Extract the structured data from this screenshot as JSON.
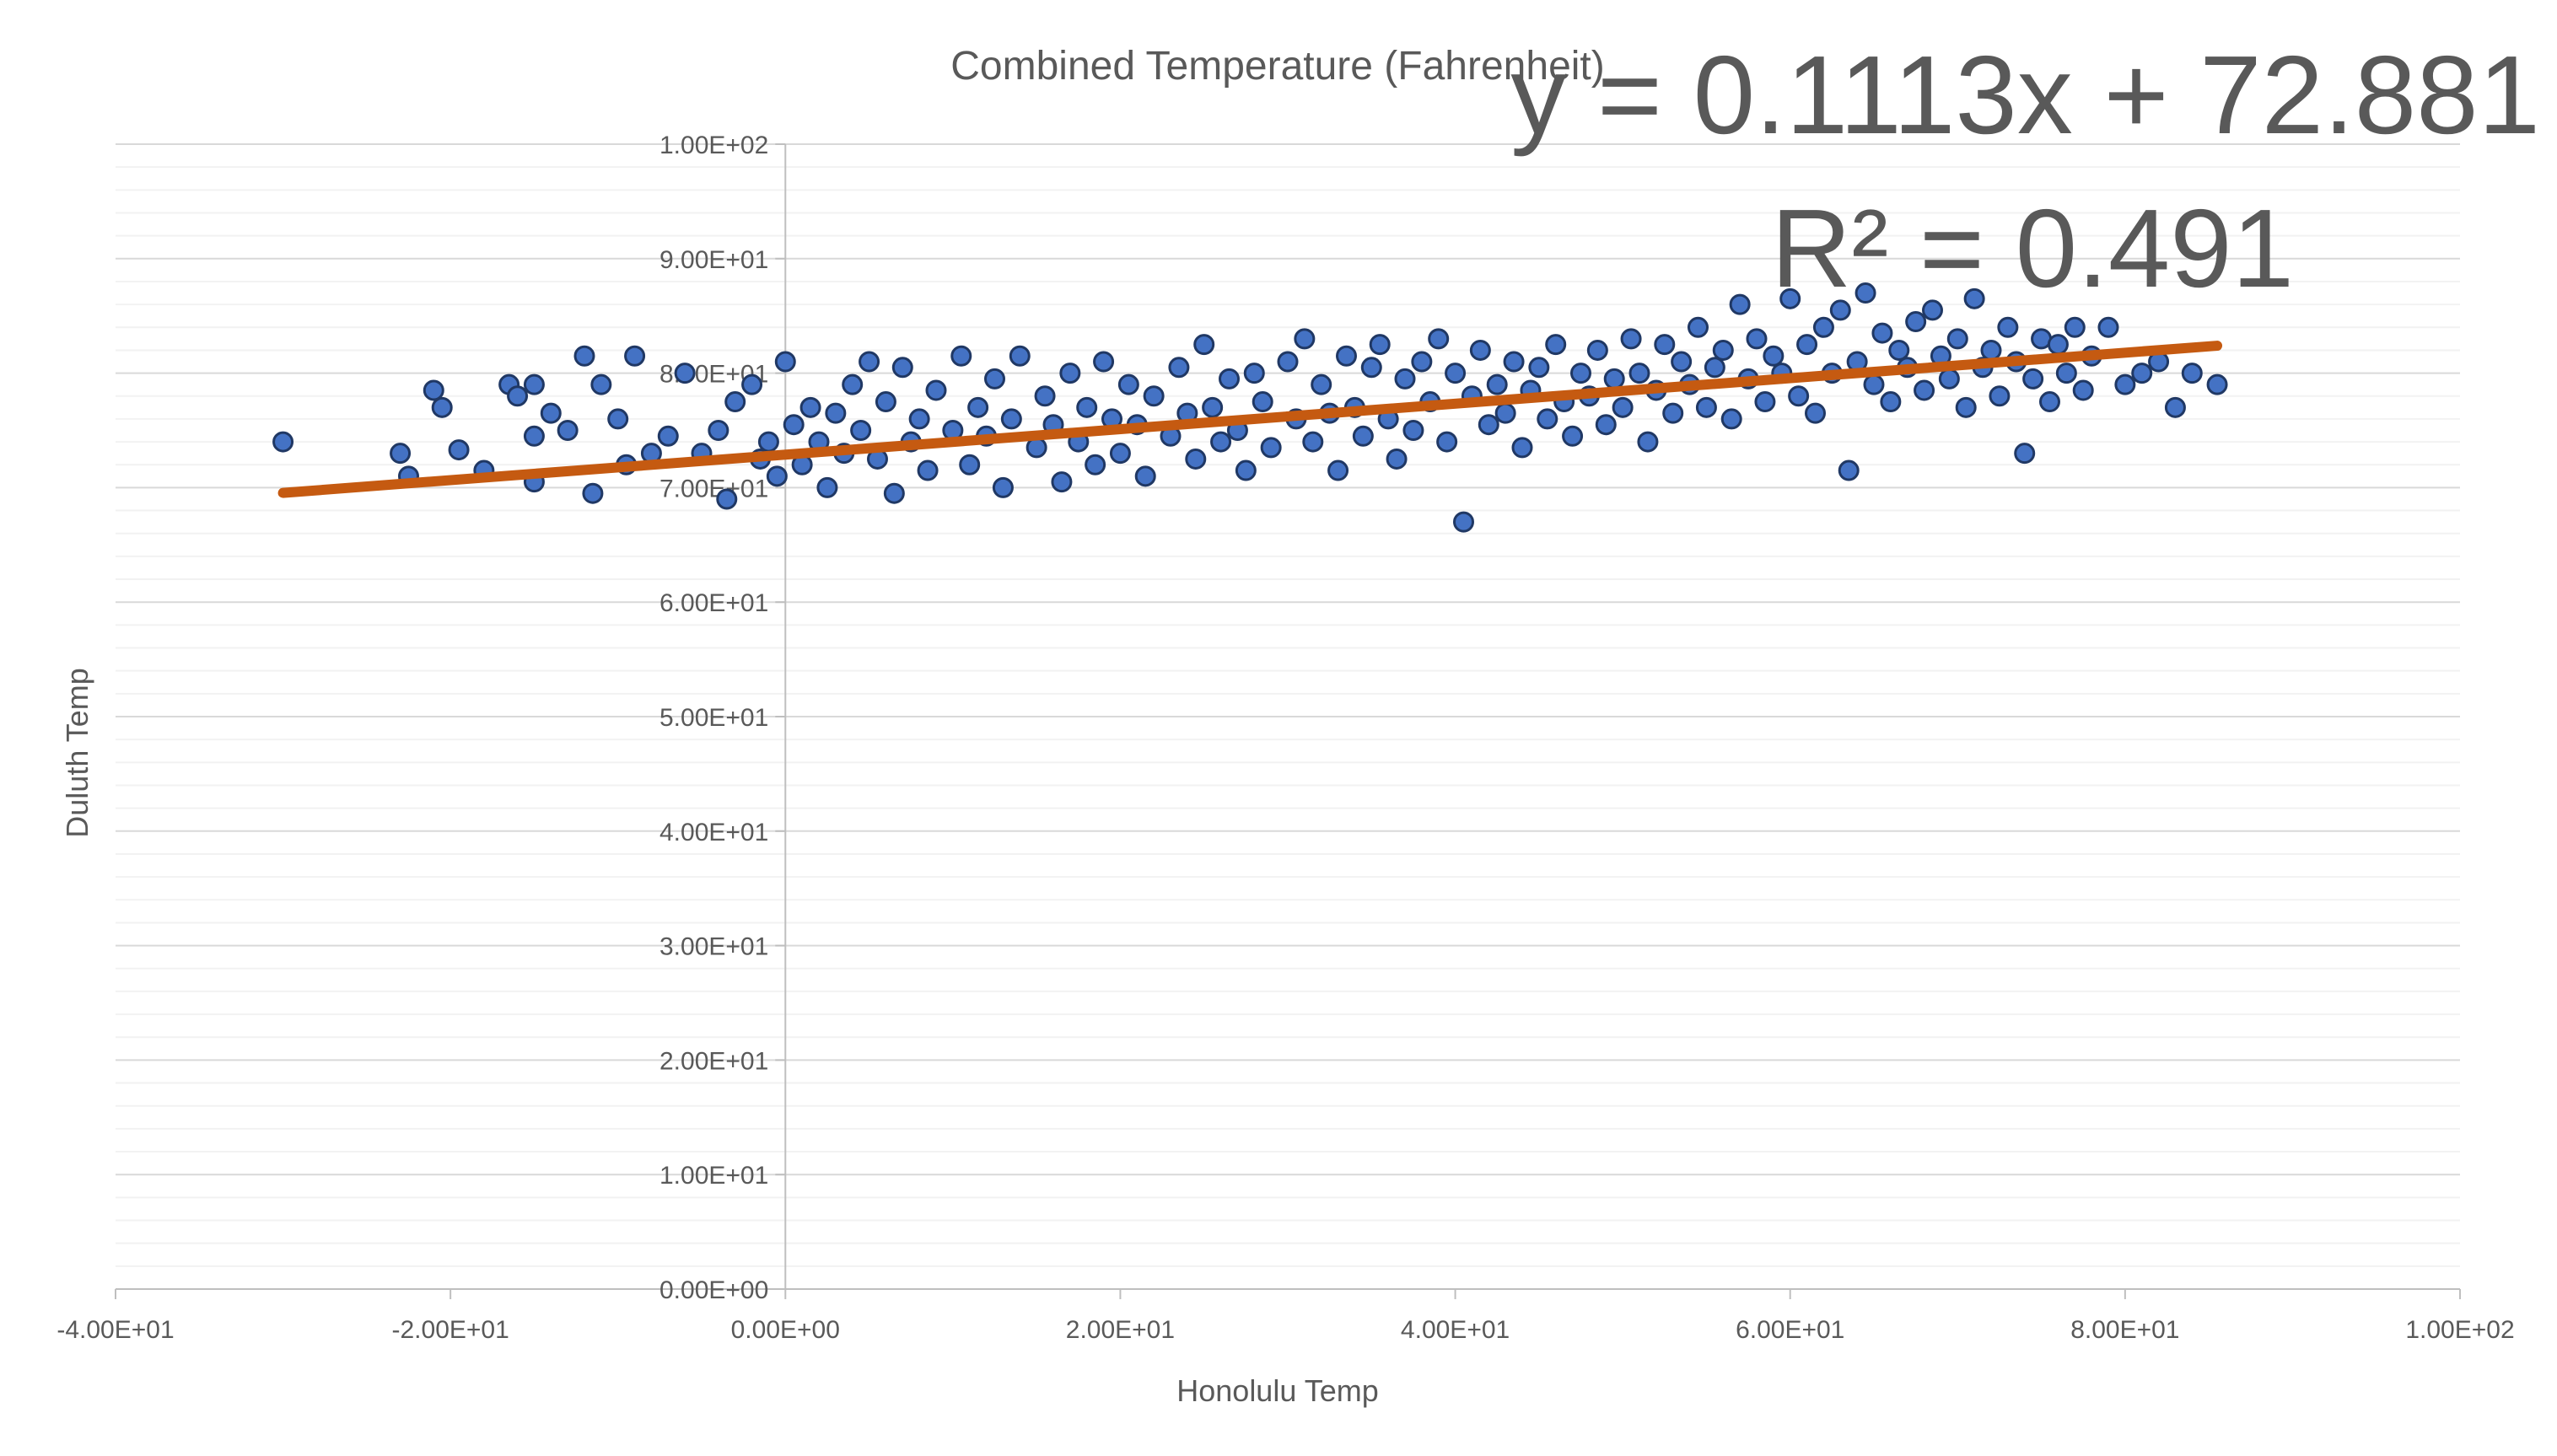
{
  "chart_data": {
    "type": "scatter",
    "title": "Combined Temperature (Fahrenheit)",
    "xlabel": "Honolulu Temp",
    "ylabel": "Duluth Temp",
    "xlim": [
      -40,
      100
    ],
    "ylim": [
      0,
      100
    ],
    "x_ticks": [
      -40,
      -20,
      0,
      20,
      40,
      60,
      80,
      100
    ],
    "y_ticks": [
      0,
      10,
      20,
      30,
      40,
      50,
      60,
      70,
      80,
      90,
      100
    ],
    "x_tick_labels": [
      "-4.00E+01",
      "-2.00E+01",
      "0.00E+00",
      "2.00E+01",
      "4.00E+01",
      "6.00E+01",
      "8.00E+01",
      "1.00E+02"
    ],
    "y_tick_labels": [
      "0.00E+00",
      "1.00E+01",
      "2.00E+01",
      "3.00E+01",
      "4.00E+01",
      "5.00E+01",
      "6.00E+01",
      "7.00E+01",
      "8.00E+01",
      "9.00E+01",
      "1.00E+02"
    ],
    "grid": true,
    "legend": "none",
    "colors": {
      "points": "#4472C4",
      "point_edge": "#203864",
      "trendline": "#C55A11",
      "grid": "#D9D9D9",
      "text": "#595959"
    },
    "trendline": {
      "type": "linear",
      "slope": 0.1113,
      "intercept": 72.881,
      "x_range": [
        -30,
        85.5
      ],
      "equation_label": "y = 0.1113x + 72.881",
      "r2_label": "R² = 0.491"
    },
    "points": [
      [
        -30,
        74
      ],
      [
        -23,
        73
      ],
      [
        -22.5,
        71
      ],
      [
        -21,
        78.5
      ],
      [
        -20.5,
        77
      ],
      [
        -19.5,
        73.3
      ],
      [
        -18,
        71.5
      ],
      [
        -16.5,
        79
      ],
      [
        -16,
        78
      ],
      [
        -15,
        79
      ],
      [
        -15,
        70.5
      ],
      [
        -15,
        74.5
      ],
      [
        -14,
        76.5
      ],
      [
        -13,
        75
      ],
      [
        -12,
        81.5
      ],
      [
        -11.5,
        69.5
      ],
      [
        -11,
        79
      ],
      [
        -10,
        76
      ],
      [
        -9.5,
        72
      ],
      [
        -9,
        81.5
      ],
      [
        -8,
        73
      ],
      [
        -7,
        74.5
      ],
      [
        -6,
        80
      ],
      [
        -5,
        73
      ],
      [
        -4,
        75
      ],
      [
        -3.5,
        69
      ],
      [
        -3,
        77.5
      ],
      [
        -2,
        79
      ],
      [
        -1.5,
        72.5
      ],
      [
        -1,
        74
      ],
      [
        -0.5,
        71
      ],
      [
        0,
        81
      ],
      [
        0.5,
        75.5
      ],
      [
        1,
        72
      ],
      [
        1.5,
        77
      ],
      [
        2,
        74
      ],
      [
        2.5,
        70
      ],
      [
        3,
        76.5
      ],
      [
        3.5,
        73
      ],
      [
        4,
        79
      ],
      [
        4.5,
        75
      ],
      [
        5,
        81
      ],
      [
        5.5,
        72.5
      ],
      [
        6,
        77.5
      ],
      [
        6.5,
        69.5
      ],
      [
        7,
        80.5
      ],
      [
        7.5,
        74
      ],
      [
        8,
        76
      ],
      [
        8.5,
        71.5
      ],
      [
        9,
        78.5
      ],
      [
        10,
        75
      ],
      [
        10.5,
        81.5
      ],
      [
        11,
        72
      ],
      [
        11.5,
        77
      ],
      [
        12,
        74.5
      ],
      [
        12.5,
        79.5
      ],
      [
        13,
        70
      ],
      [
        13.5,
        76
      ],
      [
        14,
        81.5
      ],
      [
        15,
        73.5
      ],
      [
        15.5,
        78
      ],
      [
        16,
        75.5
      ],
      [
        16.5,
        70.5
      ],
      [
        17,
        80
      ],
      [
        17.5,
        74
      ],
      [
        18,
        77
      ],
      [
        18.5,
        72
      ],
      [
        19,
        81
      ],
      [
        19.5,
        76
      ],
      [
        20,
        73
      ],
      [
        20.5,
        79
      ],
      [
        21,
        75.5
      ],
      [
        21.5,
        71
      ],
      [
        22,
        78
      ],
      [
        23,
        74.5
      ],
      [
        23.5,
        80.5
      ],
      [
        24,
        76.5
      ],
      [
        24.5,
        72.5
      ],
      [
        25,
        82.5
      ],
      [
        25.5,
        77
      ],
      [
        26,
        74
      ],
      [
        26.5,
        79.5
      ],
      [
        27,
        75
      ],
      [
        27.5,
        71.5
      ],
      [
        28,
        80
      ],
      [
        28.5,
        77.5
      ],
      [
        29,
        73.5
      ],
      [
        30,
        81
      ],
      [
        30.5,
        76
      ],
      [
        31,
        83
      ],
      [
        31.5,
        74
      ],
      [
        32,
        79
      ],
      [
        32.5,
        76.5
      ],
      [
        33,
        71.5
      ],
      [
        33.5,
        81.5
      ],
      [
        34,
        77
      ],
      [
        34.5,
        74.5
      ],
      [
        35,
        80.5
      ],
      [
        35.5,
        82.5
      ],
      [
        36,
        76
      ],
      [
        36.5,
        72.5
      ],
      [
        37,
        79.5
      ],
      [
        37.5,
        75
      ],
      [
        38,
        81
      ],
      [
        38.5,
        77.5
      ],
      [
        39,
        83
      ],
      [
        39.5,
        74
      ],
      [
        40,
        80
      ],
      [
        40.5,
        67
      ],
      [
        41,
        78
      ],
      [
        41.5,
        82
      ],
      [
        42,
        75.5
      ],
      [
        42.5,
        79
      ],
      [
        43,
        76.5
      ],
      [
        43.5,
        81
      ],
      [
        44,
        73.5
      ],
      [
        44.5,
        78.5
      ],
      [
        45,
        80.5
      ],
      [
        45.5,
        76
      ],
      [
        46,
        82.5
      ],
      [
        46.5,
        77.5
      ],
      [
        47,
        74.5
      ],
      [
        47.5,
        80
      ],
      [
        48,
        78
      ],
      [
        48.5,
        82
      ],
      [
        49,
        75.5
      ],
      [
        49.5,
        79.5
      ],
      [
        50,
        77
      ],
      [
        50.5,
        83
      ],
      [
        51,
        80
      ],
      [
        51.5,
        74
      ],
      [
        52,
        78.5
      ],
      [
        52.5,
        82.5
      ],
      [
        53,
        76.5
      ],
      [
        53.5,
        81
      ],
      [
        54,
        79
      ],
      [
        54.5,
        84
      ],
      [
        55,
        77
      ],
      [
        55.5,
        80.5
      ],
      [
        56,
        82
      ],
      [
        56.5,
        76
      ],
      [
        57,
        86
      ],
      [
        57.5,
        79.5
      ],
      [
        58,
        83
      ],
      [
        58.5,
        77.5
      ],
      [
        59,
        81.5
      ],
      [
        59.5,
        80
      ],
      [
        60,
        86.5
      ],
      [
        60.5,
        78
      ],
      [
        61,
        82.5
      ],
      [
        61.5,
        76.5
      ],
      [
        62,
        84
      ],
      [
        62.5,
        80
      ],
      [
        63,
        85.5
      ],
      [
        63.5,
        71.5
      ],
      [
        64,
        81
      ],
      [
        64.5,
        87
      ],
      [
        65,
        79
      ],
      [
        65.5,
        83.5
      ],
      [
        66,
        77.5
      ],
      [
        66.5,
        82
      ],
      [
        67,
        80.5
      ],
      [
        67.5,
        84.5
      ],
      [
        68,
        78.5
      ],
      [
        68.5,
        85.5
      ],
      [
        69,
        81.5
      ],
      [
        69.5,
        79.5
      ],
      [
        70,
        83
      ],
      [
        70.5,
        77
      ],
      [
        71,
        86.5
      ],
      [
        71.5,
        80.5
      ],
      [
        72,
        82
      ],
      [
        72.5,
        78
      ],
      [
        73,
        84
      ],
      [
        73.5,
        81
      ],
      [
        74,
        73
      ],
      [
        74.5,
        79.5
      ],
      [
        75,
        83
      ],
      [
        75.5,
        77.5
      ],
      [
        76,
        82.5
      ],
      [
        76.5,
        80
      ],
      [
        77,
        84
      ],
      [
        77.5,
        78.5
      ],
      [
        78,
        81.5
      ],
      [
        79,
        84
      ],
      [
        80,
        79
      ],
      [
        81,
        80
      ],
      [
        82,
        81
      ],
      [
        83,
        77
      ],
      [
        84,
        80
      ],
      [
        85.5,
        79
      ]
    ]
  }
}
